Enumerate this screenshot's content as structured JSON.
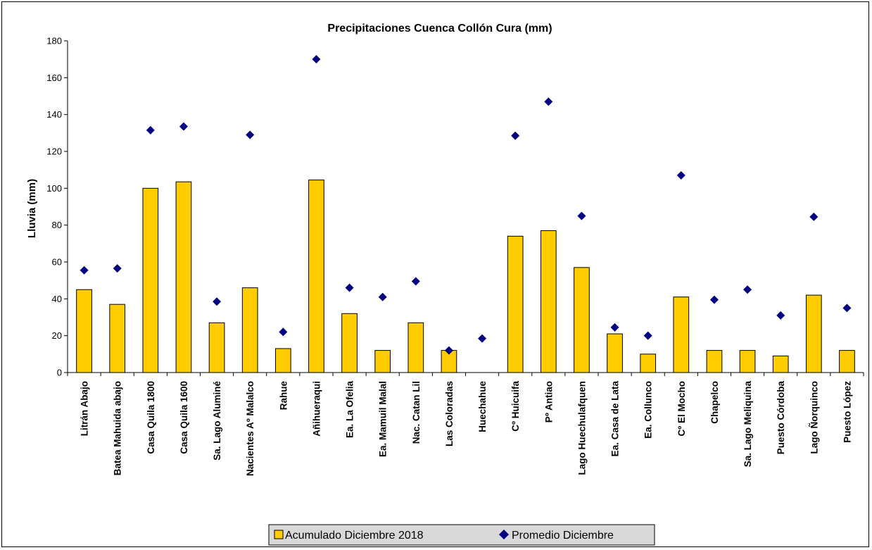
{
  "chart_data": {
    "type": "bar",
    "title": "Precipitaciones Cuenca Collón Cura (mm)",
    "xlabel": "",
    "ylabel": "Lluvia (mm)",
    "ylim": [
      0,
      180
    ],
    "yticks": [
      0,
      20,
      40,
      60,
      80,
      100,
      120,
      140,
      160,
      180
    ],
    "grid": false,
    "legend_position": "bottom",
    "categories": [
      "Litrán Abajo",
      "Batea Mahuida abajo",
      "Casa Quila 1800",
      "Casa Quila 1600",
      "Sa. Lago Aluminé",
      "Nacientes Aº Malalco",
      "Rahue",
      "Añihueraqui",
      "Ea. La Ofelia",
      "Ea. Mamuil Malal",
      "Nac. Catan Lil",
      "Las Coloradas",
      "Huechahue",
      "Cº Huicuifa",
      "Pº Antiao",
      "Lago Huechulafquen",
      "Ea. Casa de Lata",
      "Ea. Collunco",
      "Cº El Mocho",
      "Chapelco",
      "Sa. Lago Meliquina",
      "Puesto Córdoba",
      "Lago Ñorquinco",
      "Puesto López"
    ],
    "series": [
      {
        "name": "Acumulado Diciembre 2018",
        "type": "bar",
        "color": "#FFCC00",
        "values": [
          45,
          37,
          100,
          103.5,
          27,
          46,
          13,
          104.5,
          32,
          12,
          27,
          12,
          0,
          74,
          77,
          57,
          21,
          10,
          41,
          12,
          12,
          9,
          42,
          12
        ]
      },
      {
        "name": "Promedio Diciembre",
        "type": "scatter",
        "marker": "diamond",
        "color": "#000080",
        "values": [
          55.5,
          56.5,
          131.5,
          133.5,
          38.5,
          129,
          22,
          170,
          46,
          41,
          49.5,
          12,
          18.5,
          128.5,
          147,
          85,
          24.5,
          20,
          107,
          39.5,
          45,
          31,
          84.5,
          35
        ]
      }
    ]
  }
}
